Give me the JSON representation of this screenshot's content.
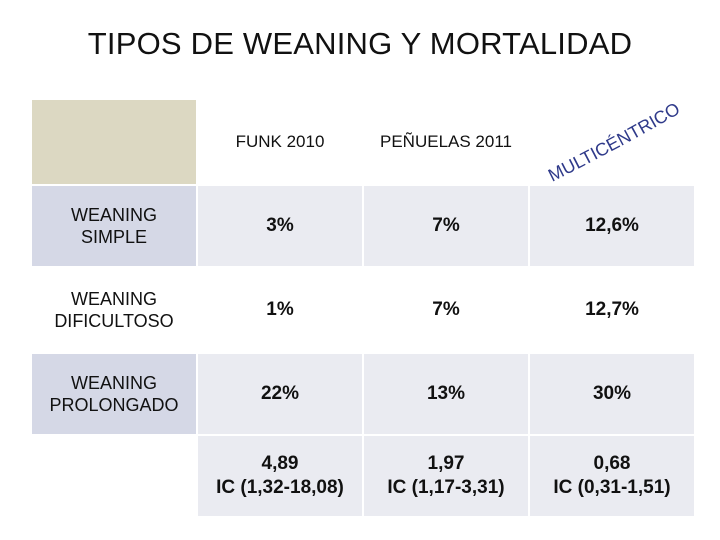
{
  "title": "TIPOS DE WEANING Y MORTALIDAD",
  "columns": [
    "FUNK 2010",
    "PEÑUELAS 2011",
    "MULTICÉNTRICO"
  ],
  "rows": [
    {
      "label": "WEANING SIMPLE",
      "values": [
        "3%",
        "7%",
        "12,6%"
      ]
    },
    {
      "label": "WEANING DIFICULTOSO",
      "values": [
        "1%",
        "7%",
        "12,7%"
      ]
    },
    {
      "label": "WEANING PROLONGADO",
      "values": [
        "22%",
        "13%",
        "30%"
      ]
    }
  ],
  "or_row": {
    "values": [
      {
        "value": "4,89",
        "ci": "IC (1,32-18,08)"
      },
      {
        "value": "1,97",
        "ci": "IC (1,17-3,31)"
      },
      {
        "value": "0,68",
        "ci": "IC (0,31-1,51)"
      }
    ]
  },
  "colors": {
    "header_tan": "#dcd8c2",
    "label_blue": "#d5d8e6",
    "cell_light": "#eaebf1",
    "multicentric_text": "#2f3a8a"
  }
}
